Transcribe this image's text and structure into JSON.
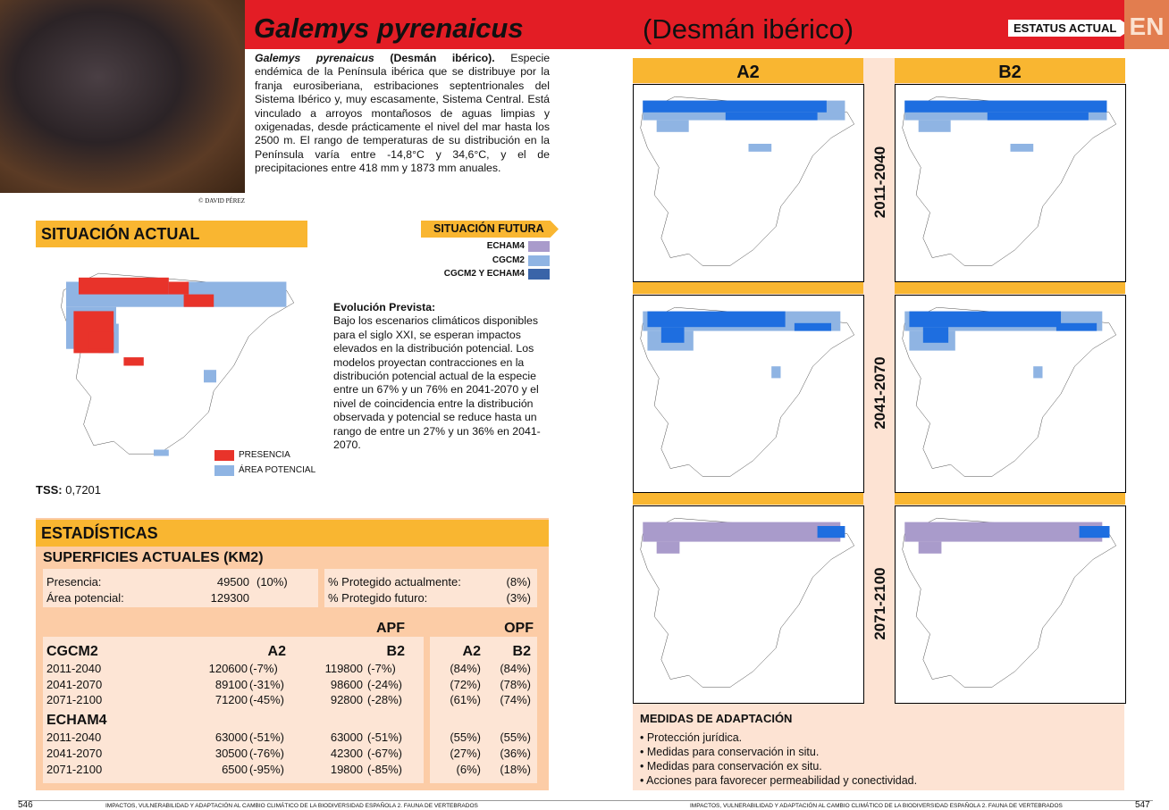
{
  "header": {
    "species": "Galemys pyrenaicus",
    "common_name": "(Desmán ibérico)",
    "status_label": "ESTATUS ACTUAL",
    "status": "EN"
  },
  "photo_credit": "© DAVID PÉREZ",
  "description": {
    "species": "Galemys pyrenaicus",
    "common_name": "(Desmán ibérico).",
    "text": "Especie endémica de la Península ibérica que se distribuye por la franja eurosiberiana, estribaciones septentrionales del Sistema Ibérico y, muy escasamente, Sistema Central. Está vinculado a arroyos montañosos de aguas limpias y oxigenadas, desde prácticamente el nivel del mar hasta los 2500 m. El rango de temperaturas de su distribución en la Península varía entre -14,8°C y 34,6°C, y el de precipitaciones entre 418 mm y 1873 mm anuales."
  },
  "situacion_actual": {
    "title": "SITUACIÓN ACTUAL",
    "legend": [
      {
        "label": "PRESENCIA",
        "color": "#e8332a"
      },
      {
        "label": "ÁREA POTENCIAL",
        "color": "#8fb4e3"
      }
    ],
    "tss_label": "TSS:",
    "tss": "0,7201"
  },
  "situacion_futura": {
    "title": "SITUACIÓN FUTURA",
    "legend": [
      {
        "label": "ECHAM4",
        "color": "#a99bcb"
      },
      {
        "label": "CGCM2",
        "color": "#8fb4e3"
      },
      {
        "label": "CGCM2 Y ECHAM4",
        "color": "#3a64a8"
      }
    ]
  },
  "evolucion": {
    "title": "Evolución Prevista:",
    "text": "Bajo los escenarios climáticos disponibles para el siglo XXI, se esperan impactos elevados en la distribución potencial. Los modelos proyectan contracciones en la distribución potencial actual de la especie entre un 67% y un 76% en 2041-2070 y el nivel de coincidencia entre la distribución observada y potencial se reduce hasta un rango de entre un 27% y un 36% en 2041-2070."
  },
  "estadisticas": {
    "title": "ESTADÍSTICAS",
    "subtitle": "SUPERFICIES ACTUALES (KM2)",
    "superficies": [
      [
        "Presencia:",
        "49500",
        "(10%)"
      ],
      [
        "Área potencial:",
        "129300"
      ]
    ],
    "proteccion": [
      [
        "% Protegido actualmente:",
        "(8%)"
      ],
      [
        "% Protegido futuro:",
        "(3%)"
      ]
    ],
    "table": {
      "apf": "APF",
      "opf": "OPF",
      "columns": [
        "A2",
        "B2",
        "A2",
        "B2"
      ],
      "groups": [
        {
          "name": "CGCM2",
          "rows": [
            [
              "2011-2040",
              "120600",
              "(-7%)",
              "119800",
              "(-7%)",
              "(84%)",
              "(84%)"
            ],
            [
              "2041-2070",
              "89100",
              "(-31%)",
              "98600",
              "(-24%)",
              "(72%)",
              "(78%)"
            ],
            [
              "2071-2100",
              "71200",
              "(-45%)",
              "92800",
              "(-28%)",
              "(61%)",
              "(74%)"
            ]
          ]
        },
        {
          "name": "ECHAM4",
          "rows": [
            [
              "2011-2040",
              "63000",
              "(-51%)",
              "63000",
              "(-51%)",
              "(55%)",
              "(55%)"
            ],
            [
              "2041-2070",
              "30500",
              "(-76%)",
              "42300",
              "(-67%)",
              "(27%)",
              "(36%)"
            ],
            [
              "2071-2100",
              "6500",
              "(-95%)",
              "19800",
              "(-85%)",
              "(6%)",
              "(18%)"
            ]
          ]
        }
      ]
    }
  },
  "maps": {
    "scenarios": [
      "A2",
      "B2"
    ],
    "periods": [
      "2011-2040",
      "2041-2070",
      "2071-2100"
    ]
  },
  "medidas": {
    "title": "MEDIDAS DE ADAPTACIÓN",
    "items": [
      "• Protección jurídica.",
      "• Medidas para conservación in situ.",
      "• Medidas para conservación ex situ.",
      "• Acciones para favorecer permeabilidad y conectividad."
    ]
  },
  "footer": {
    "page_left": "546",
    "running_left": "IMPACTOS, VULNERABILIDAD Y ADAPTACIÓN AL CAMBIO CLIMÁTICO DE LA BIODIVERSIDAD ESPAÑOLA 2. FAUNA DE VERTEBRADOS",
    "running_right": "IMPACTOS, VULNERABILIDAD Y ADAPTACIÓN AL CAMBIO CLIMÁTICO DE LA BIODIVERSIDAD ESPAÑOLA 2. FAUNA DE VERTEBRADOS",
    "page_right": "547"
  }
}
